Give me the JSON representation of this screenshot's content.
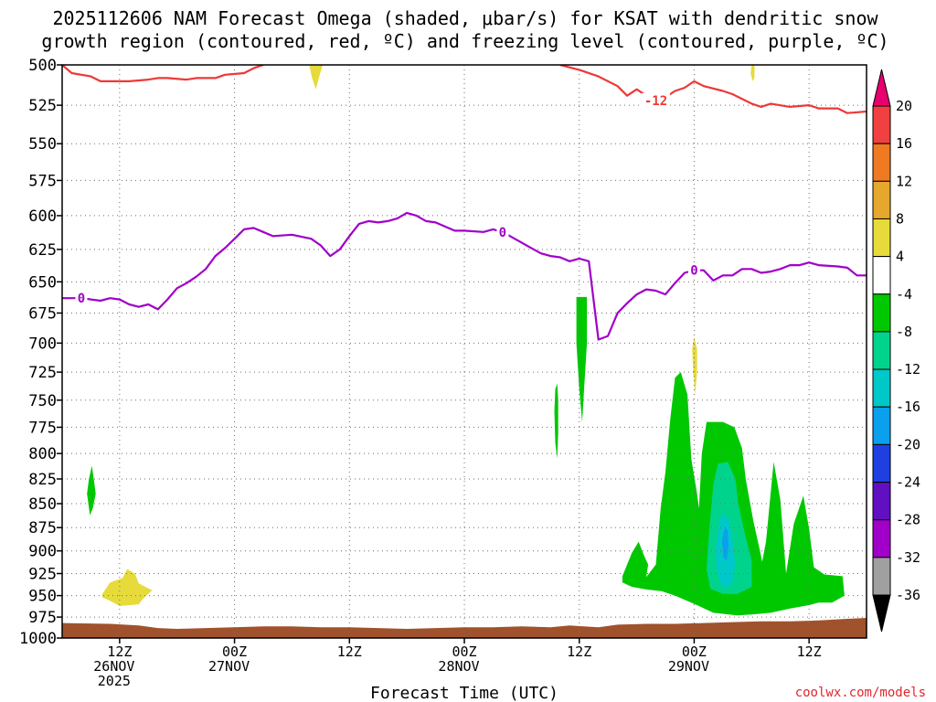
{
  "chart_data": {
    "type": "heatmap",
    "title_lines": [
      "2025112606 NAM Forecast Omega (shaded, μbar/s) for KSAT with dendritic snow",
      "growth region (contoured, red, ºC) and freezing level (contoured, purple, ºC)"
    ],
    "xlabel": "Forecast Time (UTC)",
    "credit": "coolwx.com/models",
    "y_axis": {
      "unit": "hPa",
      "scale": "log-pressure",
      "range": [
        1000,
        500
      ],
      "ticks": [
        500,
        525,
        550,
        575,
        600,
        625,
        650,
        675,
        700,
        725,
        750,
        775,
        800,
        825,
        850,
        875,
        900,
        925,
        950,
        975,
        1000
      ]
    },
    "x_axis": {
      "range_hours": [
        0,
        84
      ],
      "ticks": [
        {
          "h": 6,
          "lines": [
            "12Z",
            "26NOV",
            "2025"
          ]
        },
        {
          "h": 18,
          "lines": [
            "00Z",
            "27NOV"
          ]
        },
        {
          "h": 30,
          "lines": [
            "12Z"
          ]
        },
        {
          "h": 42,
          "lines": [
            "00Z",
            "28NOV"
          ]
        },
        {
          "h": 54,
          "lines": [
            "12Z"
          ]
        },
        {
          "h": 66,
          "lines": [
            "00Z",
            "29NOV"
          ]
        },
        {
          "h": 78,
          "lines": [
            "12Z"
          ]
        }
      ]
    },
    "grid": true,
    "colorbar": {
      "position": "right",
      "levels": [
        20,
        16,
        12,
        8,
        4,
        -4,
        -8,
        -12,
        -16,
        -20,
        -24,
        -28,
        -32,
        -36
      ],
      "colors": [
        "#e8006f",
        "#f04040",
        "#f07a22",
        "#e6a82c",
        "#e6db3a",
        "#ffffff",
        "#00c800",
        "#00d48c",
        "#00c8c8",
        "#0aa0ee",
        "#1e40e0",
        "#6010c0",
        "#a000c8",
        "#a0a0a0",
        "#000000"
      ]
    },
    "contours": [
      {
        "name": "-12",
        "color": "#ee3838",
        "points": [
          [
            0,
            500
          ],
          [
            1,
            505
          ],
          [
            3,
            507
          ],
          [
            4,
            510
          ],
          [
            7,
            510
          ],
          [
            9,
            509
          ],
          [
            10,
            508
          ],
          [
            11,
            508
          ],
          [
            13,
            509
          ],
          [
            14,
            508
          ],
          [
            16,
            508
          ],
          [
            17,
            506
          ],
          [
            19,
            505
          ],
          [
            20,
            502
          ],
          [
            21,
            500
          ]
        ]
      },
      {
        "name": "-12",
        "color": "#ee3838",
        "points": [
          [
            52,
            500
          ],
          [
            54,
            503
          ],
          [
            56,
            507
          ],
          [
            58,
            513
          ],
          [
            59,
            519
          ],
          [
            60,
            515
          ],
          [
            61,
            519
          ],
          [
            63,
            520
          ],
          [
            64,
            516
          ],
          [
            65,
            514
          ],
          [
            66,
            510
          ],
          [
            67,
            513
          ],
          [
            69,
            516
          ],
          [
            70,
            518
          ],
          [
            72,
            524
          ],
          [
            73,
            526
          ],
          [
            74,
            524
          ],
          [
            76,
            526
          ],
          [
            78,
            525
          ],
          [
            79,
            527
          ],
          [
            81,
            527
          ],
          [
            82,
            530
          ],
          [
            84,
            529
          ]
        ]
      },
      {
        "name": "0",
        "color": "#a000c8",
        "points": [
          [
            0,
            663
          ],
          [
            2,
            663
          ],
          [
            4,
            665
          ],
          [
            5,
            663
          ],
          [
            6,
            664
          ],
          [
            7,
            668
          ],
          [
            8,
            670
          ],
          [
            9,
            668
          ],
          [
            10,
            672
          ],
          [
            11,
            664
          ],
          [
            12,
            655
          ],
          [
            13,
            651
          ],
          [
            14,
            646
          ],
          [
            15,
            640
          ],
          [
            16,
            630
          ],
          [
            17,
            624
          ],
          [
            18,
            617
          ],
          [
            19,
            610
          ],
          [
            20,
            609
          ],
          [
            21,
            612
          ],
          [
            22,
            615
          ],
          [
            24,
            614
          ],
          [
            26,
            617
          ],
          [
            27,
            622
          ],
          [
            28,
            630
          ],
          [
            29,
            625
          ],
          [
            30,
            615
          ],
          [
            31,
            606
          ],
          [
            32,
            604
          ],
          [
            33,
            605
          ],
          [
            34,
            604
          ],
          [
            35,
            602
          ],
          [
            36,
            598
          ],
          [
            37,
            600
          ],
          [
            38,
            604
          ],
          [
            39,
            605
          ],
          [
            40,
            608
          ],
          [
            41,
            611
          ],
          [
            42,
            611
          ],
          [
            44,
            612
          ],
          [
            45,
            610
          ],
          [
            46,
            612
          ],
          [
            47,
            616
          ],
          [
            48,
            620
          ],
          [
            49,
            624
          ],
          [
            50,
            628
          ],
          [
            51,
            630
          ],
          [
            52,
            631
          ],
          [
            53,
            634
          ],
          [
            54,
            632
          ],
          [
            55,
            634
          ],
          [
            56,
            697
          ],
          [
            57,
            694
          ],
          [
            58,
            675
          ],
          [
            59,
            667
          ],
          [
            60,
            660
          ],
          [
            61,
            656
          ],
          [
            62,
            657
          ],
          [
            63,
            660
          ],
          [
            64,
            651
          ],
          [
            65,
            643
          ],
          [
            66,
            641
          ],
          [
            67,
            641
          ],
          [
            68,
            649
          ],
          [
            69,
            645
          ],
          [
            70,
            645
          ],
          [
            71,
            640
          ],
          [
            72,
            640
          ],
          [
            73,
            643
          ],
          [
            74,
            642
          ],
          [
            75,
            640
          ],
          [
            76,
            637
          ],
          [
            77,
            637
          ],
          [
            78,
            635
          ],
          [
            79,
            637
          ],
          [
            81,
            638
          ],
          [
            82,
            639
          ],
          [
            83,
            645
          ],
          [
            84,
            645
          ]
        ]
      }
    ],
    "contour_labels": [
      {
        "text": "-12",
        "at": [
          62,
          522
        ],
        "color": "#ee3838"
      },
      {
        "text": "0",
        "at": [
          2,
          663
        ],
        "color": "#a000c8"
      },
      {
        "text": "0",
        "at": [
          46,
          612
        ],
        "color": "#a000c8"
      },
      {
        "text": "0",
        "at": [
          66,
          641
        ],
        "color": "#a000c8"
      }
    ],
    "shaded_regions": [
      {
        "value": 6,
        "color": "#e6db3a",
        "points": [
          [
            25.8,
            500
          ],
          [
            27.2,
            500
          ],
          [
            26.8,
            508
          ],
          [
            26.5,
            515
          ],
          [
            26.1,
            508
          ]
        ]
      },
      {
        "value": 6,
        "color": "#e6db3a",
        "points": [
          [
            72.0,
            500
          ],
          [
            72.3,
            500
          ],
          [
            72.3,
            508
          ],
          [
            72.1,
            510
          ],
          [
            71.9,
            505
          ]
        ]
      },
      {
        "value": 6,
        "color": "#e6db3a",
        "points": [
          [
            66.0,
            695
          ],
          [
            66.3,
            705
          ],
          [
            66.3,
            725
          ],
          [
            66.1,
            745
          ],
          [
            65.9,
            725
          ],
          [
            65.8,
            705
          ]
        ]
      },
      {
        "value": 6,
        "color": "#e6db3a",
        "points": [
          [
            4.2,
            948
          ],
          [
            5.0,
            935
          ],
          [
            6.3,
            930
          ],
          [
            6.8,
            920
          ],
          [
            7.6,
            925
          ],
          [
            8.0,
            936
          ],
          [
            9.4,
            944
          ],
          [
            8.5,
            953
          ],
          [
            8.0,
            960
          ],
          [
            6.0,
            962
          ],
          [
            5.0,
            956
          ],
          [
            4.2,
            952
          ]
        ]
      },
      {
        "value": -6,
        "color": "#00c800",
        "points": [
          [
            2.6,
            840
          ],
          [
            2.8,
            825
          ],
          [
            3.1,
            812
          ],
          [
            3.3,
            825
          ],
          [
            3.5,
            840
          ],
          [
            3.2,
            855
          ],
          [
            2.9,
            862
          ]
        ]
      },
      {
        "value": -6,
        "color": "#00c800",
        "points": [
          [
            51.5,
            740
          ],
          [
            51.7,
            735
          ],
          [
            51.8,
            750
          ],
          [
            51.8,
            780
          ],
          [
            51.7,
            805
          ],
          [
            51.5,
            790
          ],
          [
            51.4,
            760
          ]
        ]
      },
      {
        "value": -6,
        "color": "#00c800",
        "points": [
          [
            53.7,
            662
          ],
          [
            54.8,
            662
          ],
          [
            54.8,
            700
          ],
          [
            54.5,
            740
          ],
          [
            54.3,
            770
          ],
          [
            54.0,
            740
          ],
          [
            53.7,
            700
          ]
        ]
      },
      {
        "value": -6,
        "color": "#00c800",
        "points": [
          [
            58.5,
            928
          ],
          [
            59.5,
            902
          ],
          [
            60.2,
            890
          ],
          [
            60.8,
            906
          ],
          [
            61.2,
            915
          ],
          [
            61.0,
            929
          ],
          [
            62.0,
            915
          ],
          [
            62.5,
            855
          ],
          [
            63.0,
            818
          ],
          [
            63.5,
            768
          ],
          [
            64.0,
            730
          ],
          [
            64.6,
            725
          ],
          [
            65.3,
            745
          ],
          [
            65.7,
            805
          ],
          [
            66.3,
            840
          ],
          [
            66.5,
            855
          ],
          [
            66.8,
            800
          ],
          [
            67.3,
            770
          ],
          [
            69.0,
            770
          ],
          [
            70.2,
            775
          ],
          [
            71.0,
            795
          ],
          [
            71.4,
            826
          ],
          [
            72.2,
            869
          ],
          [
            72.9,
            901
          ],
          [
            73.1,
            912
          ],
          [
            73.5,
            890
          ],
          [
            74.3,
            808
          ],
          [
            75.0,
            846
          ],
          [
            75.6,
            925
          ],
          [
            76.4,
            871
          ],
          [
            77.4,
            842
          ],
          [
            78.0,
            876
          ],
          [
            78.5,
            918
          ],
          [
            79.6,
            926
          ],
          [
            80.5,
            927
          ],
          [
            81.5,
            928
          ],
          [
            81.7,
            950
          ],
          [
            80.4,
            958
          ],
          [
            79.0,
            958
          ],
          [
            78.0,
            961
          ],
          [
            76.0,
            965
          ],
          [
            74.0,
            970
          ],
          [
            72.0,
            972
          ],
          [
            70.5,
            973
          ],
          [
            68.0,
            970
          ],
          [
            66.5,
            962
          ],
          [
            64.0,
            950
          ],
          [
            62.6,
            945
          ],
          [
            61.0,
            943
          ],
          [
            59.5,
            940
          ],
          [
            58.5,
            935
          ]
        ]
      },
      {
        "value": -10,
        "color": "#00d48c",
        "points": [
          [
            67.6,
            875
          ],
          [
            68.0,
            830
          ],
          [
            68.5,
            810
          ],
          [
            69.5,
            808
          ],
          [
            70.3,
            825
          ],
          [
            70.6,
            850
          ],
          [
            71.4,
            886
          ],
          [
            72.0,
            910
          ],
          [
            72.0,
            940
          ],
          [
            70.5,
            948
          ],
          [
            69.0,
            948
          ],
          [
            67.7,
            942
          ],
          [
            67.3,
            920
          ]
        ]
      },
      {
        "value": -14,
        "color": "#00c8c8",
        "points": [
          [
            68.3,
            895
          ],
          [
            68.6,
            870
          ],
          [
            69.0,
            860
          ],
          [
            69.6,
            865
          ],
          [
            70.0,
            885
          ],
          [
            70.3,
            915
          ],
          [
            70.0,
            935
          ],
          [
            69.3,
            942
          ],
          [
            68.7,
            935
          ],
          [
            68.3,
            915
          ]
        ]
      },
      {
        "value": -18,
        "color": "#0aa0ee",
        "points": [
          [
            68.9,
            890
          ],
          [
            69.2,
            875
          ],
          [
            69.5,
            878
          ],
          [
            69.6,
            895
          ],
          [
            69.4,
            910
          ],
          [
            69.1,
            908
          ]
        ]
      }
    ],
    "terrain": {
      "color": "#a0522d",
      "points": [
        [
          0,
          982
        ],
        [
          5,
          983
        ],
        [
          8,
          985
        ],
        [
          10,
          988
        ],
        [
          12,
          989
        ],
        [
          15,
          988
        ],
        [
          18,
          987
        ],
        [
          21,
          986
        ],
        [
          24,
          986
        ],
        [
          27,
          987
        ],
        [
          30,
          987
        ],
        [
          33,
          988
        ],
        [
          36,
          989
        ],
        [
          39,
          988
        ],
        [
          42,
          987
        ],
        [
          45,
          987
        ],
        [
          48,
          986
        ],
        [
          51,
          987
        ],
        [
          53,
          985
        ],
        [
          56,
          987
        ],
        [
          58,
          984
        ],
        [
          61,
          983
        ],
        [
          64,
          983
        ],
        [
          67,
          982
        ],
        [
          70,
          981
        ],
        [
          73,
          980
        ],
        [
          76,
          980
        ],
        [
          79,
          979
        ],
        [
          82,
          977
        ],
        [
          84,
          976
        ]
      ]
    }
  }
}
